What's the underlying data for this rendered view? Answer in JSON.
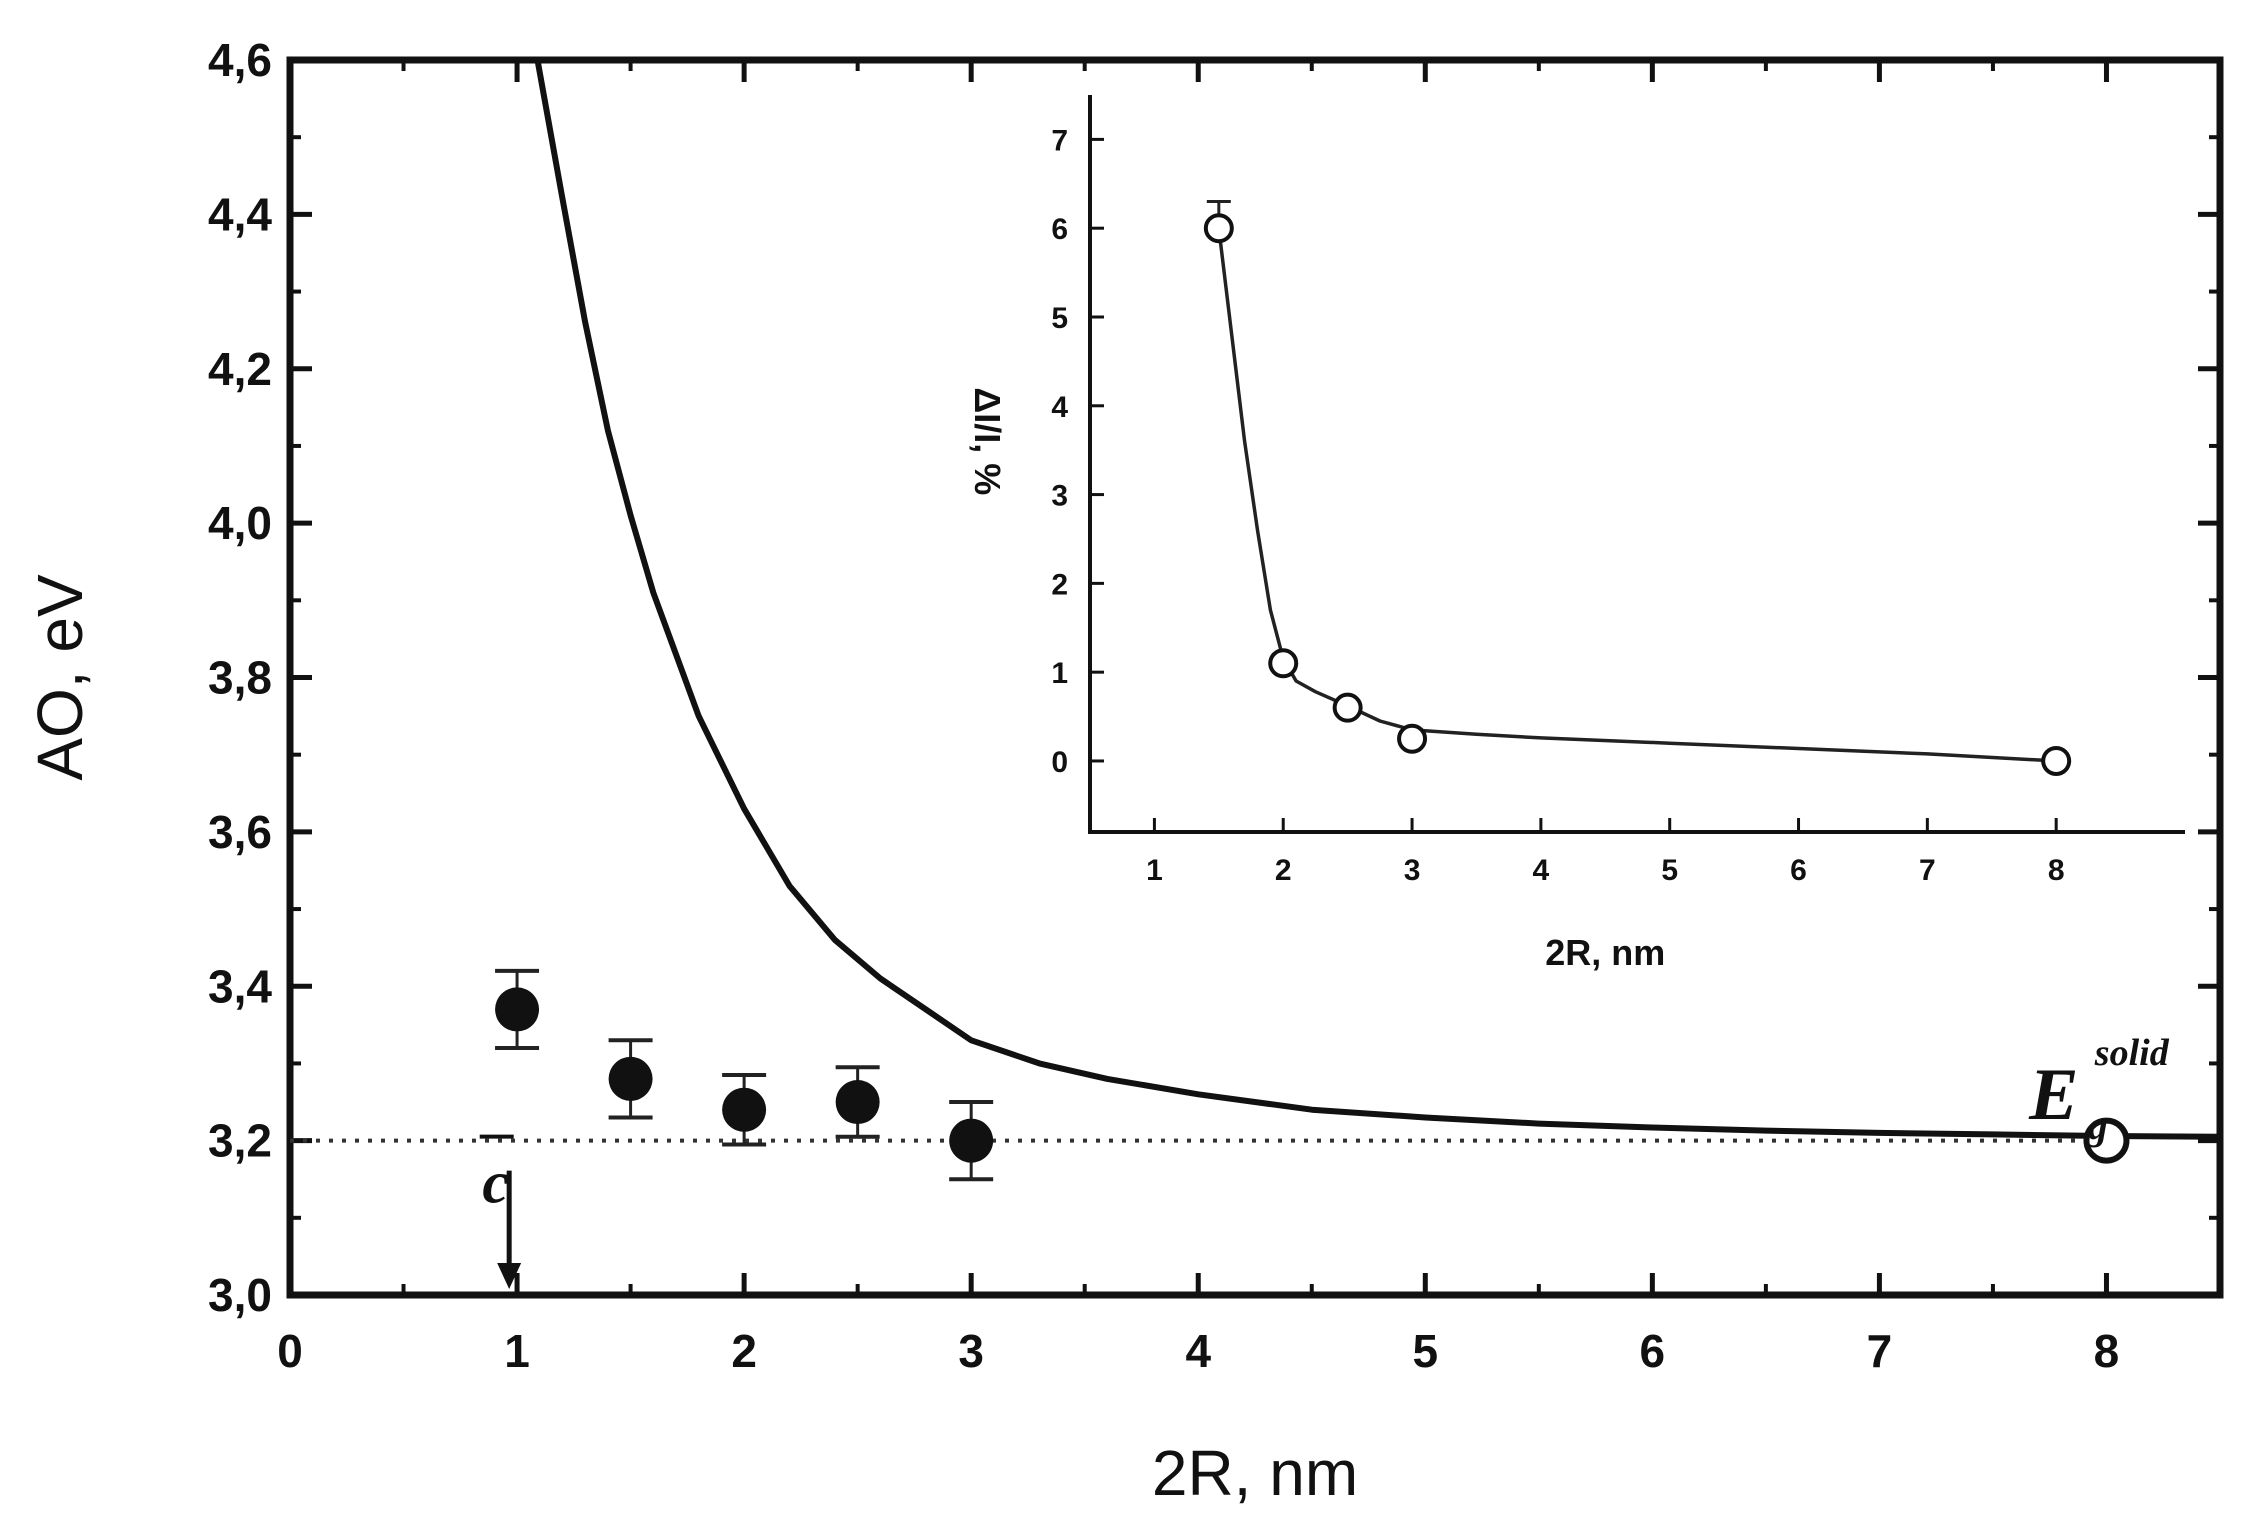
{
  "chart_data": [
    {
      "type": "scatter",
      "title": "",
      "xlabel": "2R, nm",
      "ylabel": "AO, eV",
      "xlim": [
        0,
        8.5
      ],
      "ylim": [
        3.0,
        4.6
      ],
      "x_ticks": [
        0,
        1,
        2,
        3,
        4,
        5,
        6,
        7,
        8
      ],
      "y_ticks": [
        3.0,
        3.2,
        3.4,
        3.6,
        3.8,
        4.0,
        4.2,
        4.4,
        4.6
      ],
      "x_tick_labels": [
        "0",
        "1",
        "2",
        "3",
        "4",
        "5",
        "6",
        "7",
        "8"
      ],
      "y_tick_labels": [
        "3,0",
        "3,2",
        "3,4",
        "3,6",
        "3,8",
        "4,0",
        "4,2",
        "4,4",
        "4,6"
      ],
      "grid": false,
      "series": [
        {
          "kind": "points-with-error",
          "marker": "filled-circle",
          "x": [
            1,
            1.5,
            2,
            2.5,
            3
          ],
          "y": [
            3.37,
            3.28,
            3.24,
            3.25,
            3.2
          ],
          "err": [
            0.05,
            0.05,
            0.045,
            0.045,
            0.05
          ]
        },
        {
          "kind": "curve",
          "x": [
            1.09,
            1.2,
            1.3,
            1.4,
            1.5,
            1.6,
            1.8,
            2.0,
            2.2,
            2.4,
            2.6,
            2.8,
            3.0,
            3.3,
            3.6,
            4.0,
            4.5,
            5.0,
            5.5,
            6.0,
            6.5,
            7.0,
            7.5,
            8.0,
            8.5
          ],
          "y": [
            4.6,
            4.42,
            4.26,
            4.12,
            4.01,
            3.91,
            3.75,
            3.63,
            3.53,
            3.46,
            3.41,
            3.37,
            3.33,
            3.3,
            3.28,
            3.26,
            3.24,
            3.23,
            3.222,
            3.217,
            3.213,
            3.21,
            3.208,
            3.206,
            3.205
          ]
        },
        {
          "kind": "reference-line",
          "style": "dotted",
          "y": 3.2,
          "x_range": [
            0,
            8
          ]
        },
        {
          "kind": "single-point",
          "marker": "open-circle",
          "x": [
            8
          ],
          "y": [
            3.2
          ]
        }
      ],
      "annotations": [
        {
          "text": "c",
          "x": 0.95,
          "y": 3.13,
          "arrow": "down"
        },
        {
          "text": "E",
          "superscript": "solid",
          "subscript": "g",
          "x": 7.9,
          "y": 3.28
        }
      ]
    },
    {
      "type": "line",
      "title": "",
      "inset": true,
      "xlabel": "2R, nm",
      "ylabel": "ΔI/I, %",
      "xlim": [
        0.5,
        9
      ],
      "ylim": [
        -0.8,
        7.5
      ],
      "x_ticks": [
        1,
        2,
        3,
        4,
        5,
        6,
        7,
        8
      ],
      "y_ticks": [
        0,
        1,
        2,
        3,
        4,
        5,
        6,
        7
      ],
      "x_tick_labels": [
        "1",
        "2",
        "3",
        "4",
        "5",
        "6",
        "7",
        "8"
      ],
      "y_tick_labels": [
        "0",
        "1",
        "2",
        "3",
        "4",
        "5",
        "6",
        "7"
      ],
      "grid": false,
      "series": [
        {
          "kind": "points",
          "marker": "open-circle",
          "x": [
            1.5,
            2,
            2.5,
            3,
            8
          ],
          "y": [
            6.0,
            1.1,
            0.6,
            0.25,
            0
          ],
          "err": [
            0.3,
            0,
            0,
            0,
            0
          ]
        },
        {
          "kind": "curve",
          "x": [
            1.5,
            1.6,
            1.7,
            1.8,
            1.9,
            2.0,
            2.1,
            2.25,
            2.5,
            2.75,
            3.0,
            3.5,
            4.0,
            5.0,
            6.0,
            7.0,
            8.0
          ],
          "y": [
            6.0,
            4.8,
            3.6,
            2.6,
            1.7,
            1.15,
            0.9,
            0.78,
            0.62,
            0.45,
            0.35,
            0.3,
            0.26,
            0.2,
            0.14,
            0.08,
            0.0
          ]
        }
      ]
    }
  ]
}
